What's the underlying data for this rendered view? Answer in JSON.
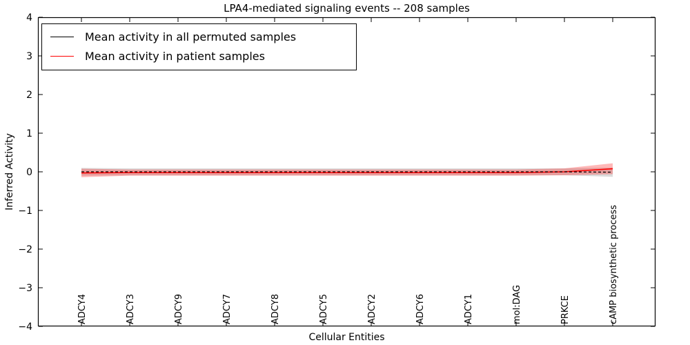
{
  "chart_data": {
    "type": "line",
    "title": "LPA4-mediated signaling events -- 208 samples",
    "xlabel": "Cellular Entities",
    "ylabel": "Inferred Activity",
    "ylim": [
      -4,
      4
    ],
    "ytick_values": [
      4,
      3,
      2,
      1,
      0,
      -1,
      -2,
      -3,
      -4
    ],
    "ytick_labels": [
      "4",
      "3",
      "2",
      "1",
      "0",
      "−1",
      "−2",
      "−3",
      "−4"
    ],
    "categories": [
      "ADCY4",
      "ADCY3",
      "ADCY9",
      "ADCY7",
      "ADCY8",
      "ADCY5",
      "ADCY2",
      "ADCY6",
      "ADCY1",
      "mol:DAG",
      "PRKCE",
      "cAMP biosynthetic process"
    ],
    "grid": false,
    "legend_position": "upper left",
    "series": [
      {
        "name": "Mean activity in all permuted samples",
        "color": "#000000",
        "line_style": "dashed",
        "mean": [
          0.0,
          0.0,
          0.0,
          0.0,
          0.0,
          0.0,
          0.0,
          0.0,
          0.0,
          0.0,
          0.0,
          -0.01
        ],
        "std": [
          0.1,
          0.09,
          0.09,
          0.09,
          0.09,
          0.09,
          0.09,
          0.09,
          0.09,
          0.09,
          0.09,
          0.12
        ],
        "band_color": "#999999",
        "band_opacity": 0.35
      },
      {
        "name": "Mean activity in patient samples",
        "color": "#ff0000",
        "line_style": "solid",
        "mean": [
          -0.03,
          -0.02,
          -0.02,
          -0.02,
          -0.02,
          -0.02,
          -0.02,
          -0.02,
          -0.02,
          -0.02,
          0.0,
          0.08
        ],
        "std": [
          0.11,
          0.08,
          0.08,
          0.08,
          0.08,
          0.08,
          0.08,
          0.08,
          0.08,
          0.08,
          0.09,
          0.14
        ],
        "band_color": "#ff0000",
        "band_opacity": 0.28
      }
    ]
  }
}
